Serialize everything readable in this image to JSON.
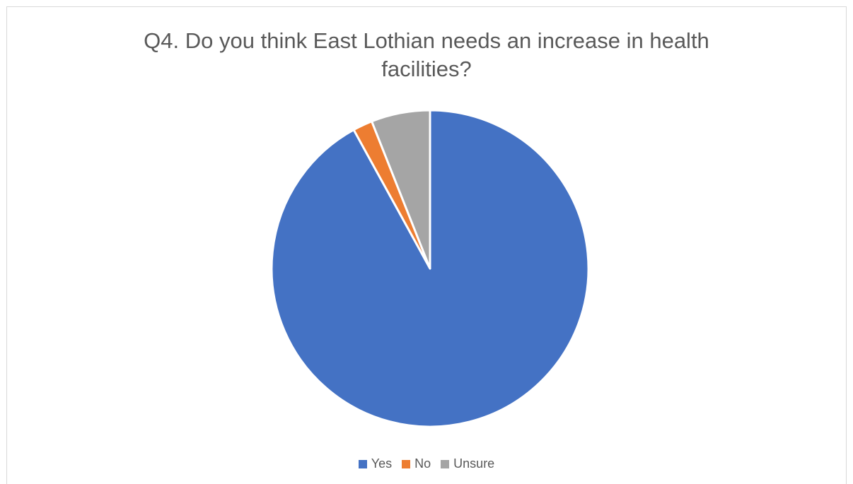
{
  "chart_data": {
    "type": "pie",
    "title_lines": [
      "Q4. Do you think East Lothian needs an increase in health",
      "facilities?"
    ],
    "title": "Q4. Do you think East Lothian needs an increase in health facilities?",
    "categories": [
      "Yes",
      "No",
      "Unsure"
    ],
    "values": [
      92,
      2,
      6
    ],
    "colors": [
      "#4472C4",
      "#ED7D31",
      "#A5A5A5"
    ],
    "legend_position": "bottom"
  }
}
